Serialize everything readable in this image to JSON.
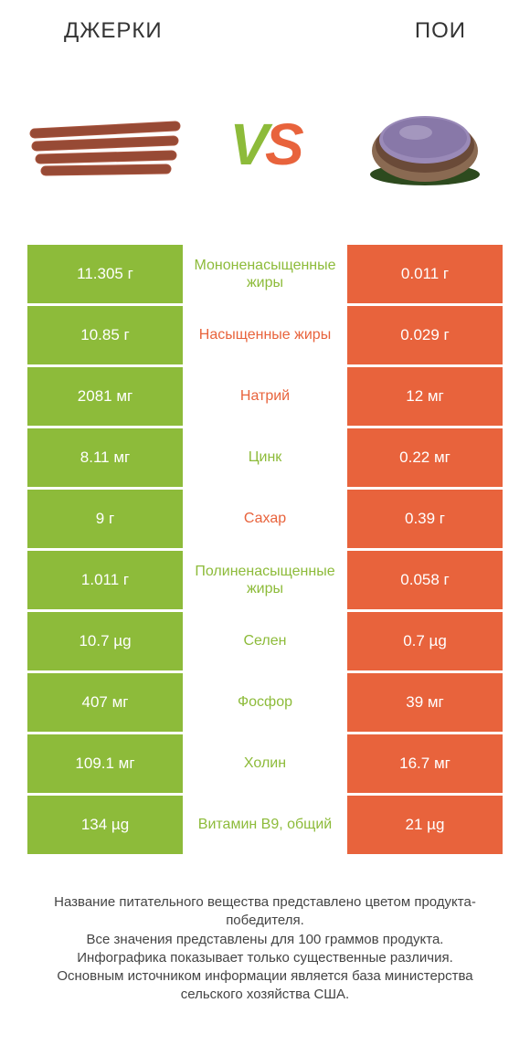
{
  "header": {
    "left_title": "ДЖЕРКИ",
    "right_title": "ПОИ"
  },
  "vs": {
    "v": "V",
    "s": "S"
  },
  "colors": {
    "green": "#8dbb3a",
    "orange": "#e8633c",
    "white": "#ffffff",
    "text": "#333333"
  },
  "table": {
    "rows": [
      {
        "left": "11.305 г",
        "mid": "Мононенасыщенные жиры",
        "right": "0.011 г",
        "winner": "left"
      },
      {
        "left": "10.85 г",
        "mid": "Насыщенные жиры",
        "right": "0.029 г",
        "winner": "right"
      },
      {
        "left": "2081 мг",
        "mid": "Натрий",
        "right": "12 мг",
        "winner": "right"
      },
      {
        "left": "8.11 мг",
        "mid": "Цинк",
        "right": "0.22 мг",
        "winner": "left"
      },
      {
        "left": "9 г",
        "mid": "Сахар",
        "right": "0.39 г",
        "winner": "right"
      },
      {
        "left": "1.011 г",
        "mid": "Полиненасыщенные жиры",
        "right": "0.058 г",
        "winner": "left"
      },
      {
        "left": "10.7 µg",
        "mid": "Селен",
        "right": "0.7 µg",
        "winner": "left"
      },
      {
        "left": "407 мг",
        "mid": "Фосфор",
        "right": "39 мг",
        "winner": "left"
      },
      {
        "left": "109.1 мг",
        "mid": "Холин",
        "right": "16.7 мг",
        "winner": "left"
      },
      {
        "left": "134 µg",
        "mid": "Витамин B9, общий",
        "right": "21 µg",
        "winner": "left"
      }
    ]
  },
  "footer": {
    "line1": "Название питательного вещества представлено цветом продукта-победителя.",
    "line2": "Все значения представлены для 100 граммов продукта.",
    "line3": "Инфографика показывает только существенные различия.",
    "line4": "Основным источником информации является база министерства сельского хозяйства США."
  }
}
